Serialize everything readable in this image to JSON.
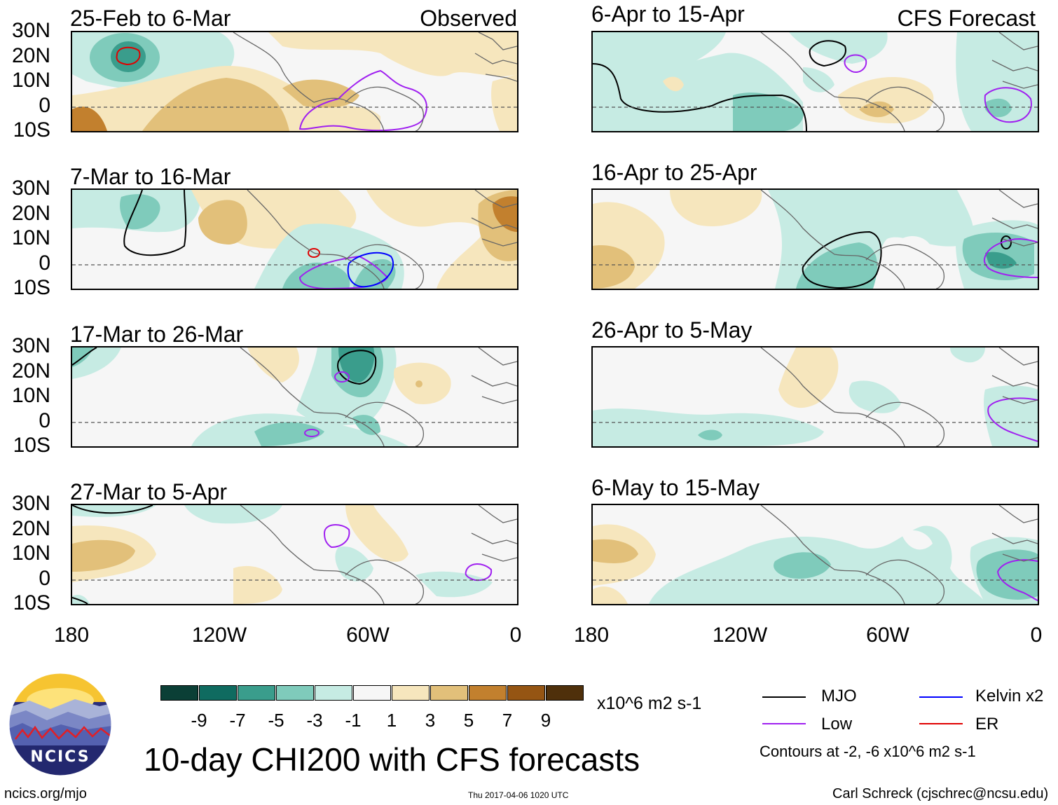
{
  "header": {
    "observed_label": "Observed",
    "forecast_label": "CFS Forecast"
  },
  "axes": {
    "lat_labels": [
      "30N",
      "20N",
      "10N",
      "0",
      "10S"
    ],
    "lon_labels": [
      "180",
      "120W",
      "60W",
      "0"
    ]
  },
  "panels": [
    {
      "title": "25-Feb to 6-Mar",
      "kind": "observed"
    },
    {
      "title": "7-Mar to 16-Mar",
      "kind": "observed"
    },
    {
      "title": "17-Mar to 26-Mar",
      "kind": "observed"
    },
    {
      "title": "27-Mar to 5-Apr",
      "kind": "observed"
    },
    {
      "title": "6-Apr to 15-Apr",
      "kind": "forecast"
    },
    {
      "title": "16-Apr to 25-Apr",
      "kind": "forecast"
    },
    {
      "title": "26-Apr to 5-May",
      "kind": "forecast"
    },
    {
      "title": "6-May to 15-May",
      "kind": "forecast"
    }
  ],
  "colorbar": {
    "colors": [
      "#0b3f36",
      "#0f6b60",
      "#3a9d8c",
      "#7fcbbb",
      "#c6ebe3",
      "#f6f6f6",
      "#f6e6bd",
      "#e2c07a",
      "#c2802e",
      "#955513",
      "#4f300b"
    ],
    "labels": [
      "-9",
      "-7",
      "-5",
      "-3",
      "-1",
      "1",
      "3",
      "5",
      "7",
      "9"
    ],
    "units": "x10^6 m2 s-1"
  },
  "title": "10-day CHI200 with CFS forecasts",
  "legend": {
    "items": [
      {
        "label": "MJO",
        "color": "#000000"
      },
      {
        "label": "Low",
        "color": "#a020f0"
      },
      {
        "label": "Kelvin x2",
        "color": "#0000ff"
      },
      {
        "label": "ER",
        "color": "#e00000"
      }
    ],
    "note": "Contours at -2, -6 x10^6 m2 s-1"
  },
  "logo": {
    "text": "NCICS"
  },
  "footer": {
    "url": "ncics.org/mjo",
    "timestamp": "Thu 2017-04-06 1020 UTC",
    "author": "Carl Schreck (cjschrec@ncsu.edu)"
  }
}
